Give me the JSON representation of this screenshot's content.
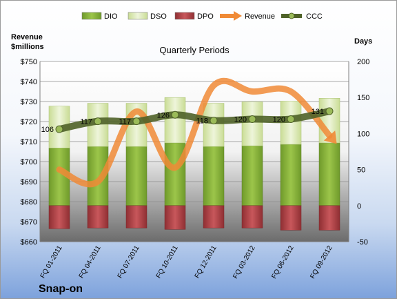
{
  "company": "Snap-on",
  "chart_data": {
    "type": "bar",
    "title": "Quarterly Periods",
    "ylabel_left": "Revenue\n$millions",
    "ylabel_right": "Days",
    "categories": [
      "FQ 01-2011",
      "FQ 04-2011",
      "FQ 07-2011",
      "FQ 10-2011",
      "FQ 12-2011",
      "FQ 03-2012",
      "FQ 06-2012",
      "FQ 09-2012"
    ],
    "left_axis": {
      "min": 660,
      "max": 750,
      "step": 10,
      "prefix": "$"
    },
    "right_axis": {
      "min": -50,
      "max": 200,
      "step": 50
    },
    "grid": true,
    "legend_position": "top",
    "series": [
      {
        "name": "DIO",
        "type": "stacked-bar",
        "axis": "right",
        "color": "#8db73f",
        "values": [
          80,
          82,
          82,
          87,
          82,
          83,
          85,
          87
        ]
      },
      {
        "name": "DSO",
        "type": "stacked-bar",
        "axis": "right",
        "color": "#d9e8b4",
        "values": [
          58,
          60,
          60,
          63,
          60,
          61,
          60,
          62
        ]
      },
      {
        "name": "DPO",
        "type": "negative-bar",
        "axis": "right",
        "color": "#b8464a",
        "values": [
          -32,
          -31,
          -31,
          -33,
          -31,
          -31,
          -34,
          -34
        ]
      },
      {
        "name": "Revenue",
        "type": "smooth-line",
        "axis": "left",
        "color": "#f08a36",
        "values": [
          696,
          690,
          725,
          697,
          738,
          735,
          735,
          713
        ]
      },
      {
        "name": "CCC",
        "type": "line-markers",
        "axis": "right",
        "color": "#4f6228",
        "values": [
          106,
          117,
          117,
          126,
          118,
          120,
          120,
          131
        ]
      }
    ],
    "data_labels": [
      {
        "series": "CCC",
        "values": [
          "106",
          "117",
          "117",
          "126",
          "118",
          "120",
          "120",
          "131"
        ]
      }
    ]
  }
}
